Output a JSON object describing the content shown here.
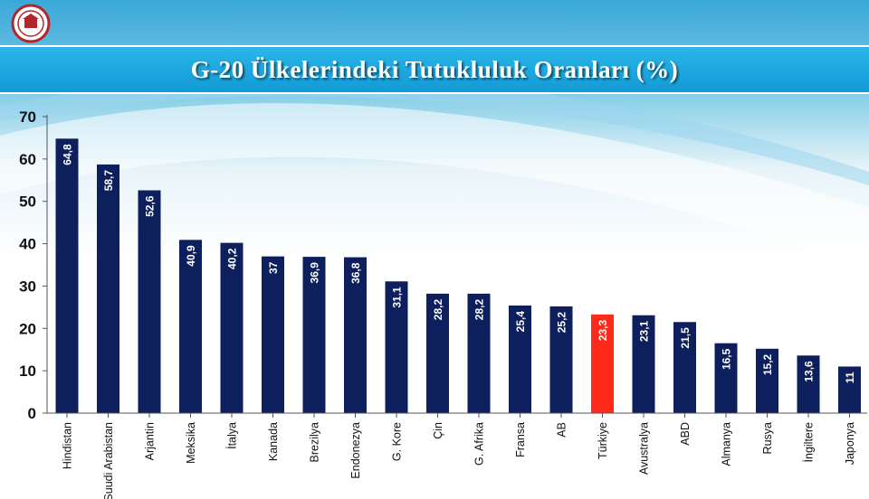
{
  "header": {
    "title": "G-20 Ülkelerindeki Tutukluluk Oranları (%)"
  },
  "logo": {
    "icon": "institution-seal-icon",
    "color": "#b3262b"
  },
  "colors": {
    "bar": "#0e1f5e",
    "highlight": "#ff2a1a",
    "title_bar": "#1ba5dd"
  },
  "chart_data": {
    "type": "bar",
    "title": "G-20 Ülkelerindeki Tutukluluk Oranları (%)",
    "xlabel": "",
    "ylabel": "",
    "ylim": [
      0,
      70
    ],
    "yticks": [
      0,
      10,
      20,
      30,
      40,
      50,
      60,
      70
    ],
    "grid": false,
    "categories": [
      "Hindistan",
      "Suudi Arabistan",
      "Arjantin",
      "Meksika",
      "İtalya",
      "Kanada",
      "Brezilya",
      "Endonezya",
      "G. Kore",
      "Çin",
      "G. Afrika",
      "Fransa",
      "AB",
      "Türkiye",
      "Avustralya",
      "ABD",
      "Almanya",
      "Rusya",
      "İngiltere",
      "Japonya"
    ],
    "values": [
      64.8,
      58.7,
      52.6,
      40.9,
      40.2,
      37,
      36.9,
      36.8,
      31.1,
      28.2,
      28.2,
      25.4,
      25.2,
      23.3,
      23.1,
      21.5,
      16.5,
      15.2,
      13.6,
      11
    ],
    "labels": [
      "64,8",
      "58,7",
      "52,6",
      "40,9",
      "40,2",
      "37",
      "36,9",
      "36,8",
      "31,1",
      "28,2",
      "28,2",
      "25,4",
      "25,2",
      "23,3",
      "23,1",
      "21,5",
      "16,5",
      "15,2",
      "13,6",
      "11"
    ],
    "highlight_category": "Türkiye"
  }
}
